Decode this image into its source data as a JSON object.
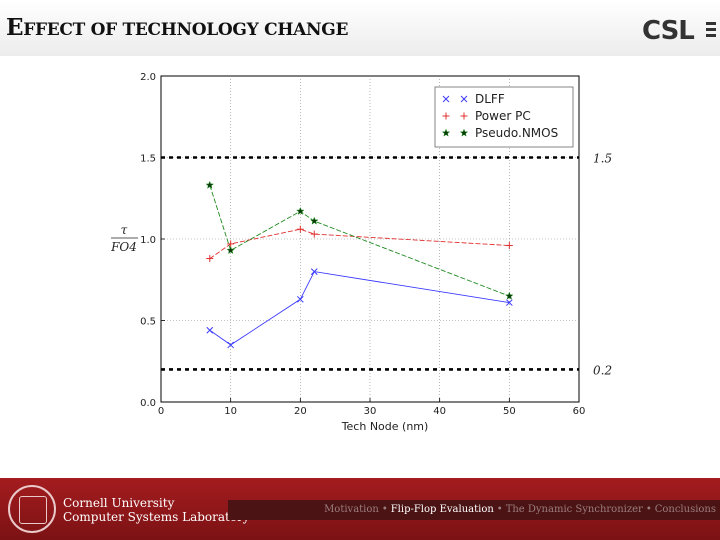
{
  "header": {
    "title_first_letter": "E",
    "title_rest": "FFECT OF TECHNOLOGY CHANGE",
    "logo_text": "CSL"
  },
  "footer": {
    "university": "Cornell University",
    "lab": "Computer Systems Laboratory",
    "nav": [
      {
        "label": "Motivation",
        "active": false
      },
      {
        "label": "Flip-Flop Evaluation",
        "active": true
      },
      {
        "label": "The Dynamic Synchronizer",
        "active": false
      },
      {
        "label": "Conclusions",
        "active": false
      }
    ],
    "separator": "•"
  },
  "chart_data": {
    "type": "line",
    "xlabel": "Tech Node (nm)",
    "ylabel_num": "τ",
    "ylabel_den": "FO4",
    "xlim": [
      0,
      60
    ],
    "ylim": [
      0.0,
      2.0
    ],
    "xticks": [
      0,
      10,
      20,
      30,
      40,
      50,
      60
    ],
    "xtick_labels": [
      "0",
      "10",
      "20",
      "30",
      "40",
      "50",
      "60"
    ],
    "yticks": [
      0.0,
      0.5,
      1.0,
      1.5,
      2.0
    ],
    "ytick_labels": [
      "0.0",
      "0.5",
      "1.0",
      "1.5",
      "2.0"
    ],
    "grid": true,
    "legend_position": "top-right",
    "series": [
      {
        "name": "DLFF",
        "color": "#3b3bff",
        "marker": "x",
        "x": [
          7,
          10,
          20,
          22,
          50
        ],
        "y": [
          0.44,
          0.35,
          0.63,
          0.8,
          0.61
        ]
      },
      {
        "name": "Power PC",
        "color": "#e03030",
        "marker": "+",
        "x": [
          7,
          10,
          20,
          22,
          50
        ],
        "y": [
          0.88,
          0.97,
          1.06,
          1.03,
          0.96
        ]
      },
      {
        "name": "Pseudo.NMOS",
        "color": "#1f8a1f",
        "marker": "star",
        "x": [
          7,
          10,
          20,
          22,
          50
        ],
        "y": [
          1.33,
          0.93,
          1.17,
          1.11,
          0.65
        ]
      }
    ],
    "reference_lines": [
      {
        "y": 1.5,
        "label": "1.5"
      },
      {
        "y": 0.2,
        "label": "0.2"
      }
    ]
  }
}
